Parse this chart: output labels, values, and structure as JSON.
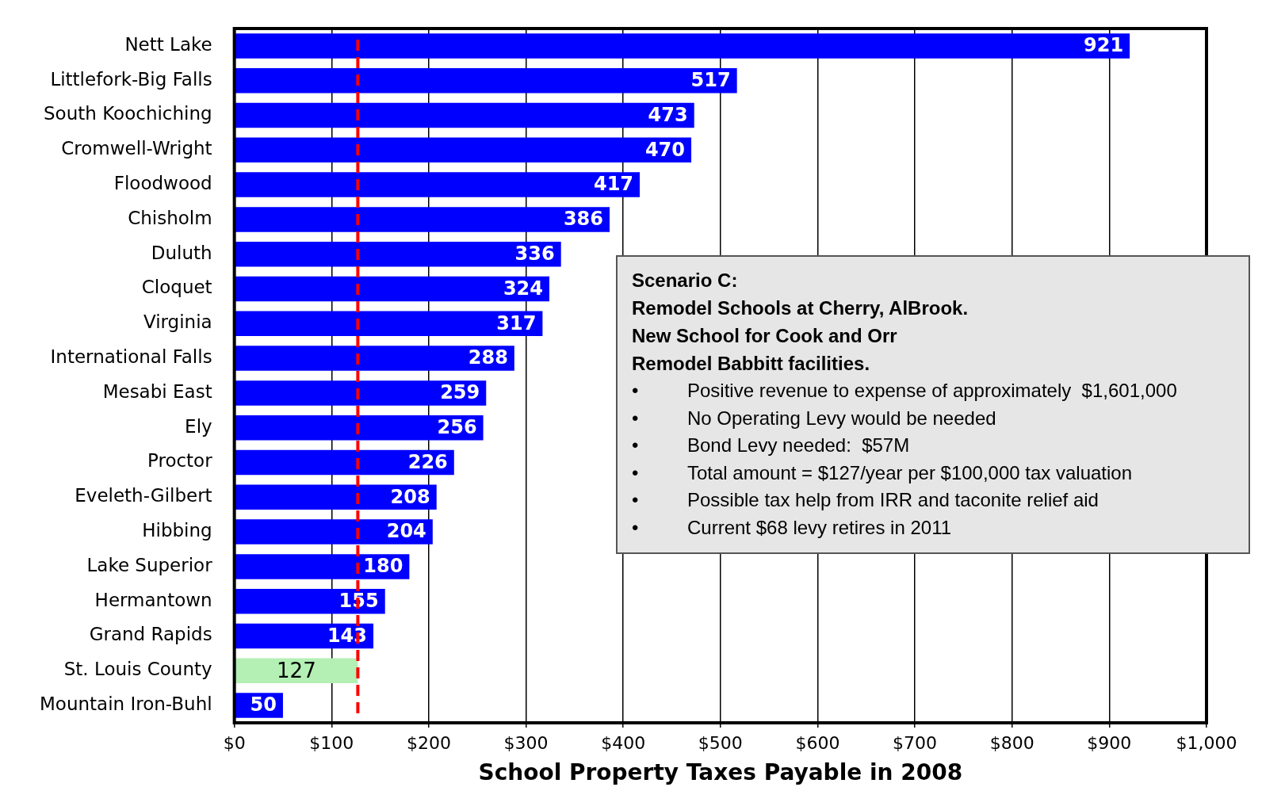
{
  "chart_data": {
    "type": "bar",
    "orientation": "horizontal",
    "xlabel": "School Property Taxes Payable in 2008",
    "categories": [
      "Nett Lake",
      "Littlefork-Big Falls",
      "South Koochiching",
      "Cromwell-Wright",
      "Floodwood",
      "Chisholm",
      "Duluth",
      "Cloquet",
      "Virginia",
      "International Falls",
      "Mesabi East",
      "Ely",
      "Proctor",
      "Eveleth-Gilbert",
      "Hibbing",
      "Lake Superior",
      "Hermantown",
      "Grand Rapids",
      "St. Louis County",
      "Mountain Iron-Buhl"
    ],
    "values": [
      921,
      517,
      473,
      470,
      417,
      386,
      336,
      324,
      317,
      288,
      259,
      256,
      226,
      208,
      204,
      180,
      155,
      143,
      127,
      50
    ],
    "colors": [
      "#0000ff",
      "#0000ff",
      "#0000ff",
      "#0000ff",
      "#0000ff",
      "#0000ff",
      "#0000ff",
      "#0000ff",
      "#0000ff",
      "#0000ff",
      "#0000ff",
      "#0000ff",
      "#0000ff",
      "#0000ff",
      "#0000ff",
      "#0000ff",
      "#0000ff",
      "#0000ff",
      "#b4f0b4",
      "#0000ff"
    ],
    "data_labels": true,
    "xlim": [
      0,
      1000
    ],
    "xticks": [
      {
        "value": 0,
        "label": "$0"
      },
      {
        "value": 100,
        "label": "$100"
      },
      {
        "value": 200,
        "label": "$200"
      },
      {
        "value": 300,
        "label": "$300"
      },
      {
        "value": 400,
        "label": "$400"
      },
      {
        "value": 500,
        "label": "$500"
      },
      {
        "value": 600,
        "label": "$600"
      },
      {
        "value": 700,
        "label": "$700"
      },
      {
        "value": 800,
        "label": "$800"
      },
      {
        "value": 900,
        "label": "$900"
      },
      {
        "value": 1000,
        "label": "$1,000"
      }
    ],
    "grid": "x",
    "legend": false,
    "ref_lines": [
      {
        "axis": "x",
        "value": 127,
        "color": "#ff0000",
        "line_style": "dashed"
      }
    ],
    "annotations": [
      "Scenario C:\nRemodel Schools at Cherry, AlBrook.\nNew School for Cook and Orr\nRemodel Babbitt facilities.",
      "•\tPositive revenue to expense of approximately  $1,601,000",
      "•\tNo Operating Levy would be needed",
      "•\tBond Levy needed:  $57M",
      "•\tTotal amount = $127/year per $100,000 tax valuation",
      "•\tPossible tax help from IRR and taconite relief aid",
      "•\tCurrent $68 levy retires in 2011"
    ]
  }
}
